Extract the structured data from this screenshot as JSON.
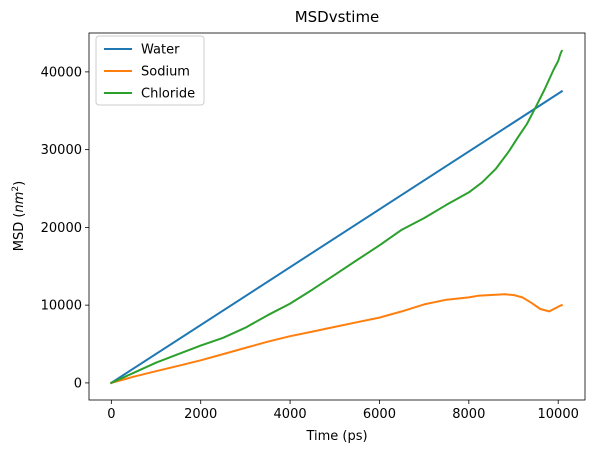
{
  "chart_data": {
    "type": "line",
    "title": "MSDvstime",
    "xlabel": "Time (ps)",
    "ylabel_prefix": "MSD (",
    "ylabel_unit_base": "nm",
    "ylabel_unit_exp": "2",
    "ylabel_suffix": ")",
    "xlim": [
      -500,
      10600
    ],
    "ylim": [
      -2200,
      45000
    ],
    "xticks": [
      0,
      2000,
      4000,
      6000,
      8000,
      10000
    ],
    "yticks": [
      0,
      10000,
      20000,
      30000,
      40000
    ],
    "grid": false,
    "legend_position": "top-left",
    "series": [
      {
        "name": "Water",
        "color": "#1f77b4",
        "x": [
          0,
          10080
        ],
        "y": [
          0,
          37500
        ]
      },
      {
        "name": "Sodium",
        "color": "#ff7f0e",
        "x": [
          0,
          500,
          1000,
          1500,
          2000,
          2500,
          3000,
          3500,
          4000,
          4500,
          5000,
          5500,
          6000,
          6500,
          7000,
          7500,
          8000,
          8200,
          8500,
          8800,
          9000,
          9200,
          9400,
          9600,
          9800,
          10000,
          10080
        ],
        "y": [
          0,
          800,
          1500,
          2200,
          2900,
          3700,
          4500,
          5300,
          6000,
          6600,
          7200,
          7800,
          8400,
          9200,
          10100,
          10700,
          11000,
          11200,
          11300,
          11400,
          11300,
          11000,
          10300,
          9500,
          9200,
          9800,
          10000
        ]
      },
      {
        "name": "Chloride",
        "color": "#2ca02c",
        "x": [
          0,
          500,
          1000,
          1500,
          2000,
          2500,
          3000,
          3500,
          4000,
          4500,
          5000,
          5500,
          6000,
          6500,
          7000,
          7500,
          8000,
          8300,
          8600,
          8900,
          9100,
          9300,
          9500,
          9700,
          9900,
          10000,
          10050,
          10080
        ],
        "y": [
          0,
          1300,
          2600,
          3700,
          4800,
          5800,
          7100,
          8700,
          10200,
          12000,
          13900,
          15800,
          17700,
          19700,
          21200,
          22900,
          24500,
          25800,
          27500,
          29800,
          31600,
          33300,
          35500,
          37800,
          40300,
          41400,
          42300,
          42700
        ]
      }
    ]
  }
}
